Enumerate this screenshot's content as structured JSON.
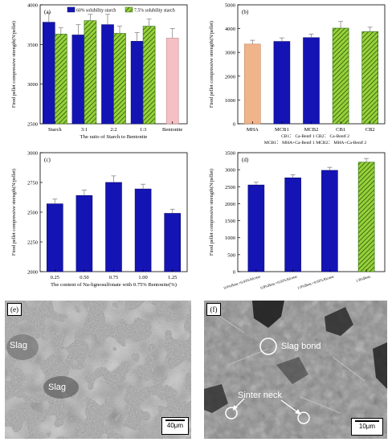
{
  "colors": {
    "blue": "#1414b4",
    "green_fill": "#9ad03a",
    "green_hatch": "#1f5a0a",
    "orange": "#f0b48a",
    "pink": "#f4c0c4",
    "error": "#888888"
  },
  "chart_data": [
    {
      "panel": "(a)",
      "type": "bar",
      "xlabel": "The ratio of Starch to Bentonite",
      "ylabel": "Fired pellet compressive strength(N/pellet)",
      "ylim": [
        2500,
        4000
      ],
      "yticks": [
        2500,
        3000,
        3500,
        4000
      ],
      "categories": [
        "Starch",
        "3:1",
        "2:2",
        "1:3",
        "Bentonite"
      ],
      "legend": {
        "position": "top",
        "entries": [
          "60% solubility starch",
          "7.5% solubility starch"
        ]
      },
      "series": [
        {
          "name": "60% solubility starch",
          "style": "blue",
          "values": [
            3780,
            3620,
            3750,
            3540,
            null
          ],
          "errors": [
            120,
            130,
            130,
            110,
            null
          ]
        },
        {
          "name": "7.5% solubility starch",
          "style": "green",
          "values": [
            3630,
            3800,
            3640,
            3730,
            null
          ],
          "errors": [
            80,
            80,
            90,
            90,
            null
          ]
        },
        {
          "name": "",
          "style": "pink",
          "values": [
            null,
            null,
            null,
            null,
            3580
          ],
          "errors": [
            null,
            null,
            null,
            null,
            120
          ]
        }
      ]
    },
    {
      "panel": "(b)",
      "type": "bar",
      "xlabel": "",
      "ylabel": "Fired pellet compressive strength(N/pellet)",
      "ylim": [
        0,
        5000
      ],
      "yticks": [
        0,
        1000,
        2000,
        3000,
        4000,
        5000
      ],
      "categories": [
        "MHA",
        "MCB1",
        "MCB2",
        "CB1",
        "CB2"
      ],
      "styles": [
        "orange",
        "blue",
        "blue",
        "green",
        "green"
      ],
      "values": [
        3350,
        3460,
        3620,
        4020,
        3870
      ],
      "errors": [
        160,
        150,
        150,
        280,
        190
      ],
      "annotation_lines": [
        "CB1： Ca-BentⅠ 1   CB2： Ca-BentⅠ 2",
        "MCB1： MHA+Ca-BentⅠ 1   MCB2： MHA+Ca-BentⅠ 2"
      ]
    },
    {
      "panel": "(c)",
      "type": "bar",
      "xlabel": "The content of Na-lignosulfonate with 0.75% Bentonite(%)",
      "ylabel": "Fired pellet compressive strength(N/pellet)",
      "ylim": [
        2000,
        3000
      ],
      "yticks": [
        2000,
        2250,
        2500,
        2750,
        3000
      ],
      "categories": [
        "0.25",
        "0.50",
        "0.75",
        "1.00",
        "1.25"
      ],
      "values": [
        2570,
        2640,
        2750,
        2695,
        2490
      ],
      "errors": [
        40,
        45,
        55,
        40,
        35
      ]
    },
    {
      "panel": "(d)",
      "type": "bar",
      "xlabel": "",
      "ylabel": "Fired pellet compressive strength(N/pellet)",
      "ylim": [
        0,
        3500
      ],
      "yticks": [
        0,
        500,
        1000,
        1500,
        2000,
        2500,
        3000,
        3500
      ],
      "categories": [
        "0.6%Bent.+0.02%Alcotac",
        "0.8%Bent.+0.02%Alcotac",
        "1.0%Bent.+0.02%Alcotac",
        "1.8%Bent."
      ],
      "styles": [
        "blue",
        "blue",
        "blue",
        "green"
      ],
      "values": [
        2550,
        2760,
        2980,
        3220
      ],
      "errors": [
        80,
        90,
        90,
        110
      ]
    }
  ],
  "micrographs": {
    "e": {
      "panel": "(e)",
      "labels": [
        "Slag",
        "Slag"
      ],
      "scale": "40μm"
    },
    "f": {
      "panel": "(f)",
      "labels": [
        "Slag bond",
        "Sinter neck"
      ],
      "scale": "10μm"
    }
  }
}
